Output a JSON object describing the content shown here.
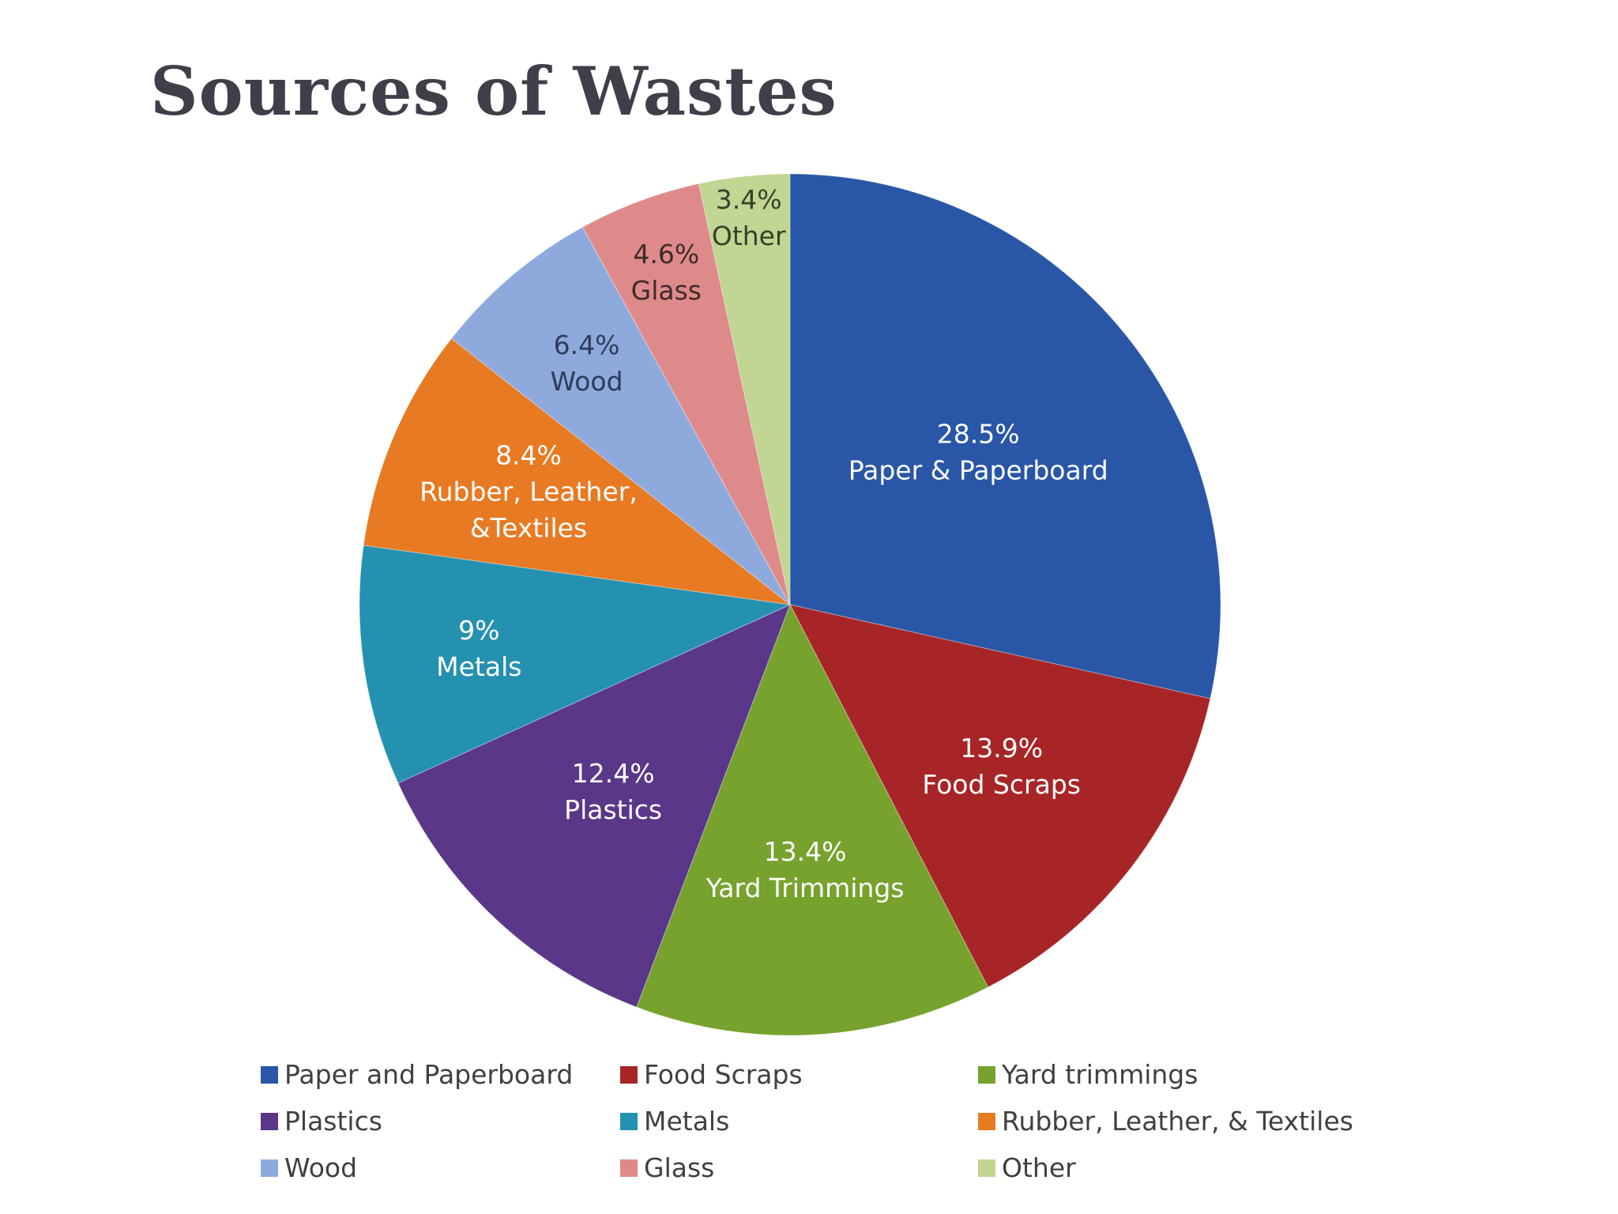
{
  "title": "Sources of Wastes",
  "chart_data": {
    "type": "pie",
    "slices": [
      {
        "legend": "Paper and Paperboard",
        "value": 28.5,
        "percent_label": "28.5%",
        "slice_label": [
          "Paper & Paperboard"
        ],
        "color": "#2956a6",
        "text_color": "#ffffff"
      },
      {
        "legend": "Food Scraps",
        "value": 13.9,
        "percent_label": "13.9%",
        "slice_label": [
          "Food Scraps"
        ],
        "color": "#a82527",
        "text_color": "#ffffff"
      },
      {
        "legend": "Yard trimmings",
        "value": 13.4,
        "percent_label": "13.4%",
        "slice_label": [
          "Yard Trimmings"
        ],
        "color": "#76a22d",
        "text_color": "#ffffff"
      },
      {
        "legend": "Plastics",
        "value": 12.4,
        "percent_label": "12.4%",
        "slice_label": [
          "Plastics"
        ],
        "color": "#5a3788",
        "text_color": "#ffffff"
      },
      {
        "legend": "Metals",
        "value": 9,
        "percent_label": "9%",
        "slice_label": [
          "Metals"
        ],
        "color": "#2591b1",
        "text_color": "#ffffff"
      },
      {
        "legend": "Rubber, Leather, & Textiles",
        "value": 8.4,
        "percent_label": "8.4%",
        "slice_label": [
          "Rubber, Leather,",
          "&Textiles"
        ],
        "color": "#e77a22",
        "text_color": "#ffffff"
      },
      {
        "legend": "Wood",
        "value": 6.4,
        "percent_label": "6.4%",
        "slice_label": [
          "Wood"
        ],
        "color": "#8eaadc",
        "text_color": "#2e3c5a"
      },
      {
        "legend": "Glass",
        "value": 4.6,
        "percent_label": "4.6%",
        "slice_label": [
          "Glass"
        ],
        "color": "#de8a8a",
        "text_color": "#3f2a2a"
      },
      {
        "legend": "Other",
        "value": 3.4,
        "percent_label": "3.4%",
        "slice_label": [
          "Other"
        ],
        "color": "#c0d692",
        "text_color": "#3a3f2a"
      }
    ],
    "legend_order": [
      "Paper and Paperboard",
      "Food Scraps",
      "Yard trimmings",
      "Plastics",
      "Metals",
      "Rubber, Leather, & Textiles",
      "Wood",
      "Glass",
      "Other"
    ]
  }
}
